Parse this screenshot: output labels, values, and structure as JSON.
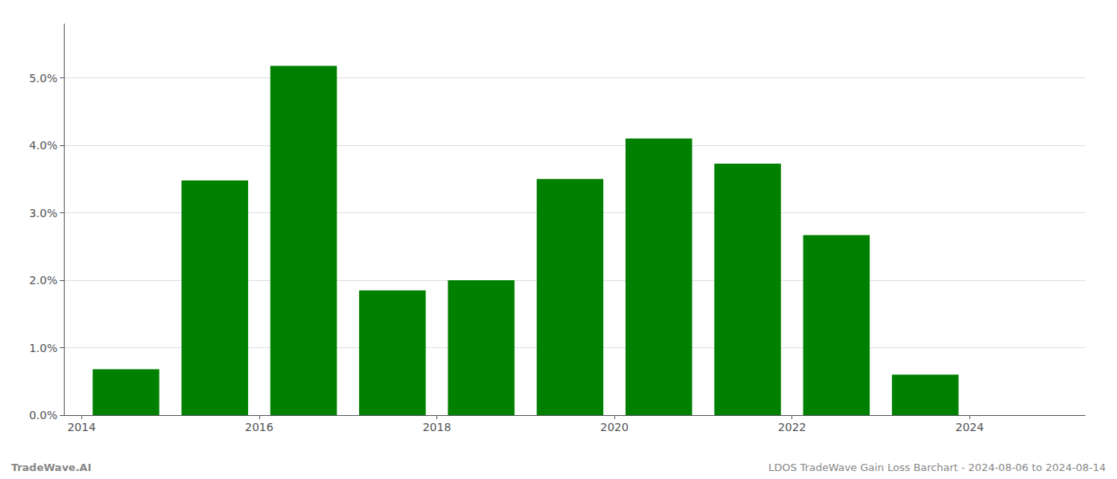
{
  "chart_data": {
    "type": "bar",
    "x": [
      2014,
      2015,
      2016,
      2017,
      2018,
      2019,
      2020,
      2021,
      2022,
      2023
    ],
    "values": [
      0.0068,
      0.0348,
      0.0518,
      0.0185,
      0.02,
      0.035,
      0.041,
      0.0373,
      0.0267,
      0.006
    ],
    "color": "#008000",
    "xlim": [
      2013.3,
      2024.8
    ],
    "xticks": [
      {
        "value": 2013.5,
        "label": "2014"
      },
      {
        "value": 2015.5,
        "label": "2016"
      },
      {
        "value": 2017.5,
        "label": "2018"
      },
      {
        "value": 2019.5,
        "label": "2020"
      },
      {
        "value": 2021.5,
        "label": "2022"
      },
      {
        "value": 2023.5,
        "label": "2024"
      }
    ],
    "ylim": [
      0,
      0.058
    ],
    "yticks": [
      {
        "value": 0.0,
        "label": "0.0%"
      },
      {
        "value": 0.01,
        "label": "1.0%"
      },
      {
        "value": 0.02,
        "label": "2.0%"
      },
      {
        "value": 0.03,
        "label": "3.0%"
      },
      {
        "value": 0.04,
        "label": "4.0%"
      },
      {
        "value": 0.05,
        "label": "5.0%"
      }
    ],
    "grid": true,
    "annotations": [
      "TradeWave.AI",
      "LDOS TradeWave Gain Loss Barchart - 2024-08-06 to 2024-08-14"
    ]
  }
}
